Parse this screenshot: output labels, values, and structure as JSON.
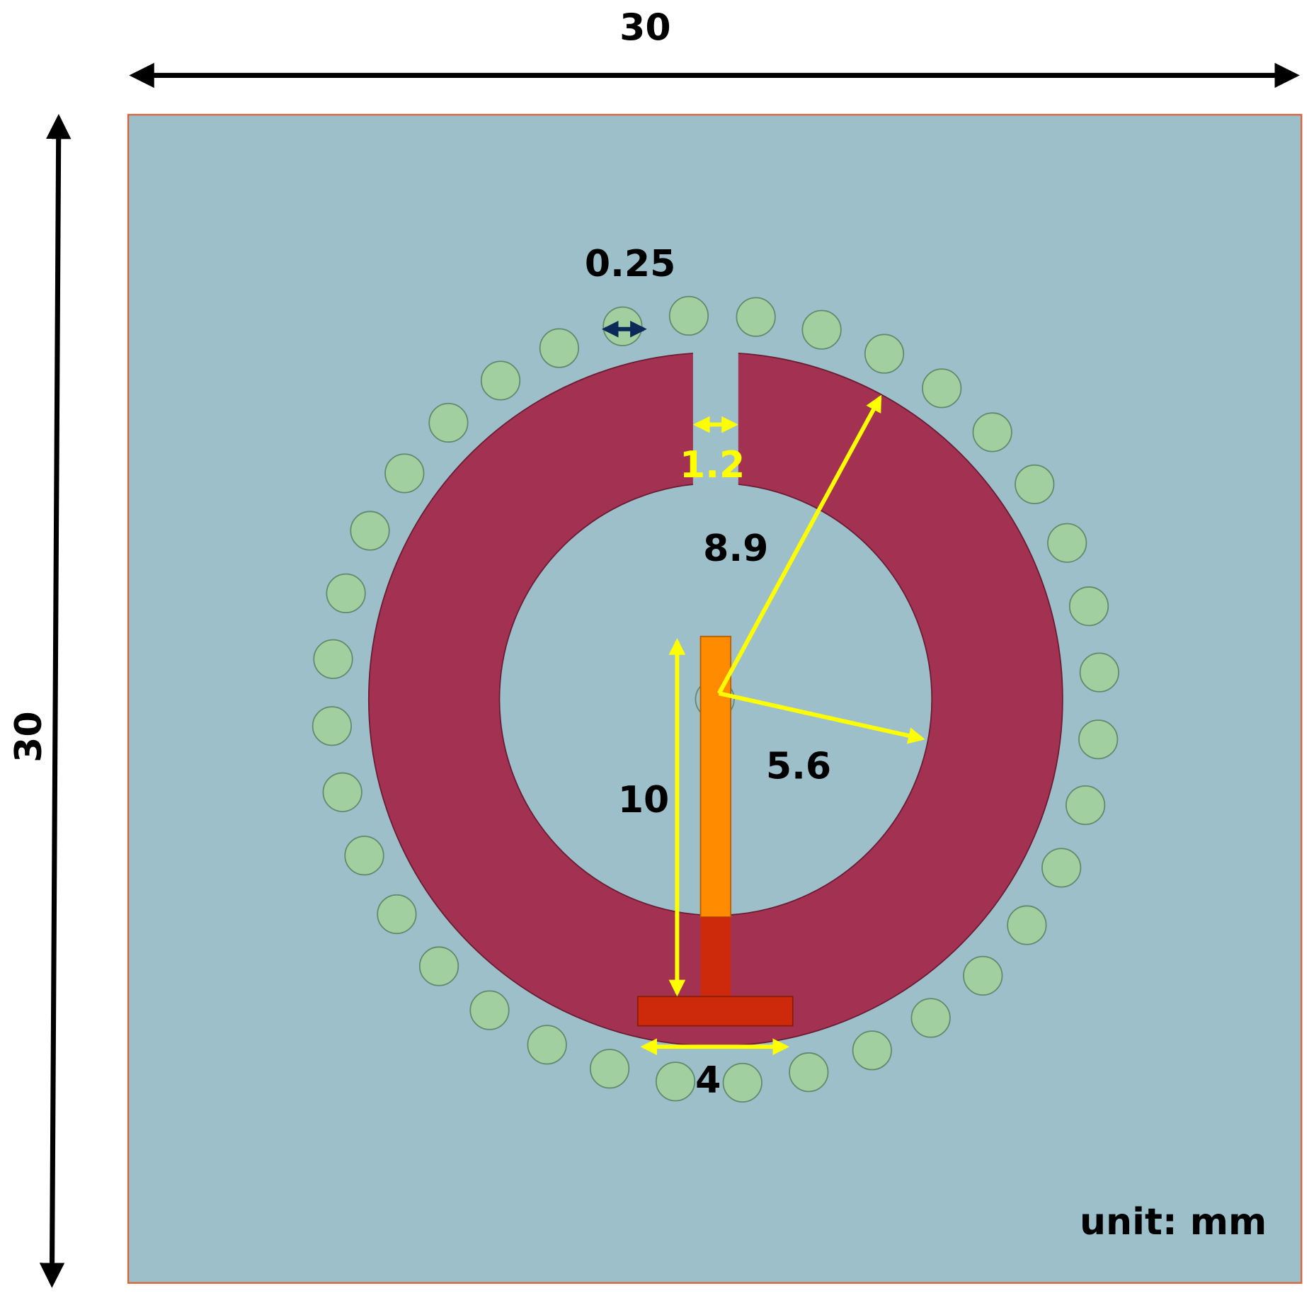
{
  "dimensions": {
    "board_width": "30",
    "board_height": "30",
    "via_diameter": "0.25",
    "slot_gap": "1.2",
    "outer_radius": "8.9",
    "inner_radius": "5.6",
    "feed_length": "10",
    "feed_width": "4"
  },
  "unit_note": "unit: mm"
}
